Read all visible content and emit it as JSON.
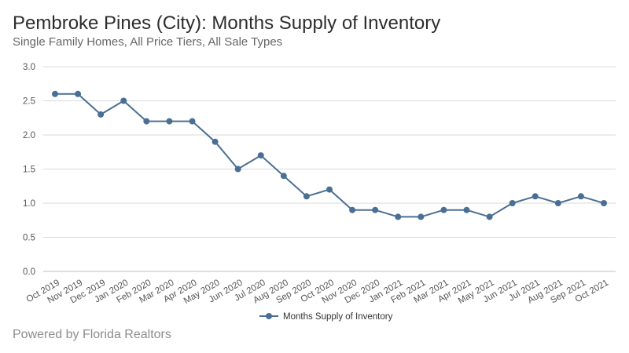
{
  "header": {
    "title": "Pembroke Pines (City): Months Supply of Inventory",
    "subtitle": "Single Family Homes, All Price Tiers, All Sale Types"
  },
  "footer": {
    "text": "Powered by Florida Realtors"
  },
  "chart_data": {
    "type": "line",
    "categories": [
      "Oct 2019",
      "Nov 2019",
      "Dec 2019",
      "Jan 2020",
      "Feb 2020",
      "Mar 2020",
      "Apr 2020",
      "May 2020",
      "Jun 2020",
      "Jul 2020",
      "Aug 2020",
      "Sep 2020",
      "Oct 2020",
      "Nov 2020",
      "Dec 2020",
      "Jan 2021",
      "Feb 2021",
      "Mar 2021",
      "Apr 2021",
      "May 2021",
      "Jun 2021",
      "Jul 2021",
      "Aug 2021",
      "Sep 2021",
      "Oct 2021"
    ],
    "series": [
      {
        "name": "Months Supply of Inventory",
        "values": [
          2.6,
          2.6,
          2.3,
          2.5,
          2.2,
          2.2,
          2.2,
          1.9,
          1.5,
          1.7,
          1.4,
          1.1,
          1.2,
          0.9,
          0.9,
          0.8,
          0.8,
          0.9,
          0.9,
          0.8,
          1.0,
          1.1,
          1.0,
          1.1,
          1.0
        ]
      }
    ],
    "ylim": [
      0,
      3
    ],
    "yticks": [
      "0.0",
      "0.5",
      "1.0",
      "1.5",
      "2.0",
      "2.5",
      "3.0"
    ],
    "grid": true,
    "legend_position": "bottom",
    "line_color": "#4a6f94",
    "grid_color": "#d9d9d9"
  }
}
